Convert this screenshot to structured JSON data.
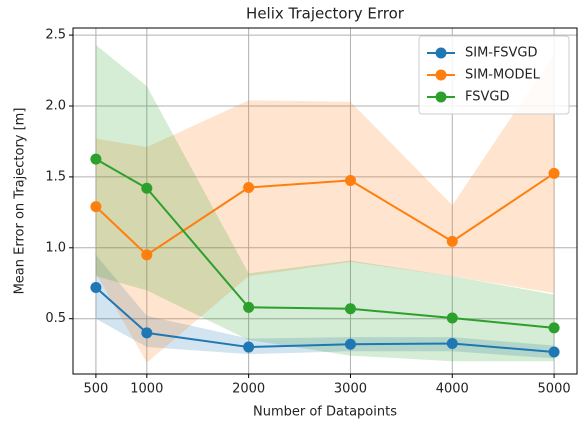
{
  "chart_data": {
    "type": "line",
    "title": "Helix Trajectory Error",
    "xlabel": "Number of Datapoints",
    "ylabel": "Mean Error on Trajectory [m]",
    "x": [
      500,
      1000,
      2000,
      3000,
      4000,
      5000
    ],
    "series": [
      {
        "name": "SIM-FSVGD",
        "color": "#1f77b4",
        "values": [
          0.72,
          0.4,
          0.3,
          0.32,
          0.325,
          0.265
        ],
        "lower": [
          0.5,
          0.3,
          0.25,
          0.27,
          0.27,
          0.22
        ],
        "upper": [
          0.95,
          0.52,
          0.36,
          0.37,
          0.37,
          0.31
        ]
      },
      {
        "name": "SIM-MODEL",
        "color": "#ff7f0e",
        "values": [
          1.29,
          0.95,
          1.425,
          1.475,
          1.045,
          1.525
        ],
        "lower": [
          0.82,
          0.19,
          0.8,
          0.9,
          0.8,
          0.68
        ],
        "upper": [
          1.77,
          1.71,
          2.04,
          2.03,
          1.3,
          2.37
        ]
      },
      {
        "name": "FSVGD",
        "color": "#2ca02c",
        "values": [
          1.625,
          1.42,
          0.58,
          0.57,
          0.505,
          0.435
        ],
        "lower": [
          0.8,
          0.7,
          0.35,
          0.24,
          0.2,
          0.2
        ],
        "upper": [
          2.43,
          2.14,
          0.82,
          0.91,
          0.8,
          0.67
        ]
      }
    ],
    "xlim": [
      275,
      5225
    ],
    "xticks": [
      500,
      1000,
      2000,
      3000,
      4000,
      5000
    ],
    "ylim": [
      0.11,
      2.55
    ],
    "yticks": [
      0.5,
      {
        "value": 1.0,
        "label": "1.0"
      },
      1.5,
      {
        "value": 2.0,
        "label": "2.0"
      },
      2.5
    ],
    "grid": true,
    "legend": "upper right"
  }
}
